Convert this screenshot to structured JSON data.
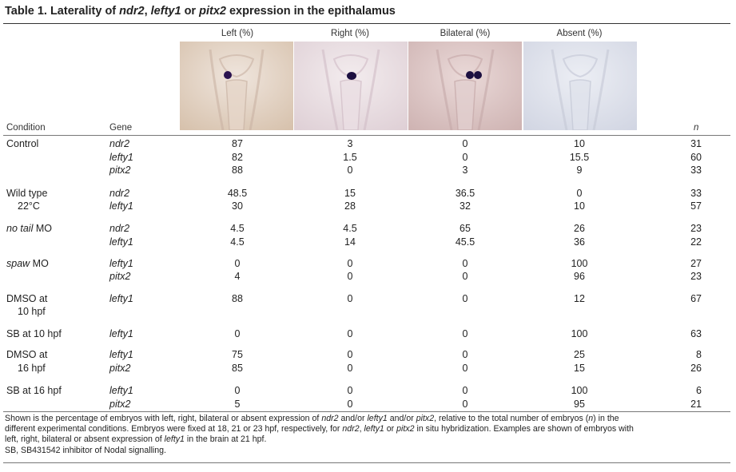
{
  "title": {
    "prefix": "Table 1. Laterality of ",
    "g1": "ndr2",
    "sep1": ", ",
    "g2": "lefty1",
    "sep2": " or ",
    "g3": "pitx2",
    "suffix": " expression in the epithalamus"
  },
  "columns": {
    "left": "Left (%)",
    "right": "Right (%)",
    "bilateral": "Bilateral (%)",
    "absent": "Absent (%)",
    "condition": "Condition",
    "gene": "Gene",
    "n": "n"
  },
  "rows": [
    {
      "c1": "Control",
      "c2": "",
      "gene": "ndr2",
      "left": "87",
      "right": "3",
      "bilateral": "0",
      "absent": "10",
      "n": "31"
    },
    {
      "c1": "",
      "c2": "",
      "gene": "lefty1",
      "left": "82",
      "right": "1.5",
      "bilateral": "0",
      "absent": "15.5",
      "n": "60"
    },
    {
      "c1": "",
      "c2": "",
      "gene": "pitx2",
      "left": "88",
      "right": "0",
      "bilateral": "3",
      "absent": "9",
      "n": "33"
    },
    {
      "c1": "Wild type",
      "c2": "",
      "gene": "ndr2",
      "left": "48.5",
      "right": "15",
      "bilateral": "36.5",
      "absent": "0",
      "n": "33"
    },
    {
      "c1": "",
      "c2": "22°C",
      "gene": "lefty1",
      "left": "30",
      "right": "28",
      "bilateral": "32",
      "absent": "10",
      "n": "57"
    },
    {
      "c1_italic": "no tail",
      "c1": " MO",
      "c2": "",
      "gene": "ndr2",
      "left": "4.5",
      "right": "4.5",
      "bilateral": "65",
      "absent": "26",
      "n": "23"
    },
    {
      "c1": "",
      "c2": "",
      "gene": "lefty1",
      "left": "4.5",
      "right": "14",
      "bilateral": "45.5",
      "absent": "36",
      "n": "22"
    },
    {
      "c1_italic": "spaw",
      "c1": " MO",
      "c2": "",
      "gene": "lefty1",
      "left": "0",
      "right": "0",
      "bilateral": "0",
      "absent": "100",
      "n": "27"
    },
    {
      "c1": "",
      "c2": "",
      "gene": "pitx2",
      "left": "4",
      "right": "0",
      "bilateral": "0",
      "absent": "96",
      "n": "23"
    },
    {
      "c1": "DMSO at",
      "c2": "",
      "gene": "lefty1",
      "left": "88",
      "right": "0",
      "bilateral": "0",
      "absent": "12",
      "n": "67"
    },
    {
      "c1": "",
      "c2": "10 hpf",
      "gene": "",
      "left": "",
      "right": "",
      "bilateral": "",
      "absent": "",
      "n": ""
    },
    {
      "c1": "SB at 10 hpf",
      "c2": "",
      "gene": "lefty1",
      "left": "0",
      "right": "0",
      "bilateral": "0",
      "absent": "100",
      "n": "63"
    },
    {
      "c1": "DMSO at",
      "c2": "",
      "gene": "lefty1",
      "left": "75",
      "right": "0",
      "bilateral": "0",
      "absent": "25",
      "n": "8"
    },
    {
      "c1": "",
      "c2": "16 hpf",
      "gene": "pitx2",
      "left": "85",
      "right": "0",
      "bilateral": "0",
      "absent": "15",
      "n": "26"
    },
    {
      "c1": "SB at 16 hpf",
      "c2": "",
      "gene": "lefty1",
      "left": "0",
      "right": "0",
      "bilateral": "0",
      "absent": "100",
      "n": "6"
    },
    {
      "c1": "",
      "c2": "",
      "gene": "pitx2",
      "left": "5",
      "right": "0",
      "bilateral": "0",
      "absent": "95",
      "n": "21"
    }
  ],
  "footnote": {
    "l1a": "Shown is the percentage of embryos with left, right, bilateral or absent expression of ",
    "l1b": "ndr2",
    "l1c": " and/or ",
    "l1d": "lefty1",
    "l1e": " and/or ",
    "l1f": "pitx2",
    "l1g": ", relative to the total number of embryos (",
    "l1h": "n",
    "l1i": ") in the",
    "l2a": "different experimental conditions. Embryos were fixed at 18, 21 or 23 hpf, respectively, for ",
    "l2b": "ndr2",
    "l2c": ", ",
    "l2d": "lefty1",
    "l2e": " or ",
    "l2f": "pitx2",
    "l2g": " in situ hybridization. Examples are shown of embryos with",
    "l3a": "left, right, bilateral or absent expression of ",
    "l3b": "lefty1",
    "l3c": " in the brain at 21 hpf.",
    "l4": "SB, SB431542 inhibitor of Nodal signalling."
  }
}
